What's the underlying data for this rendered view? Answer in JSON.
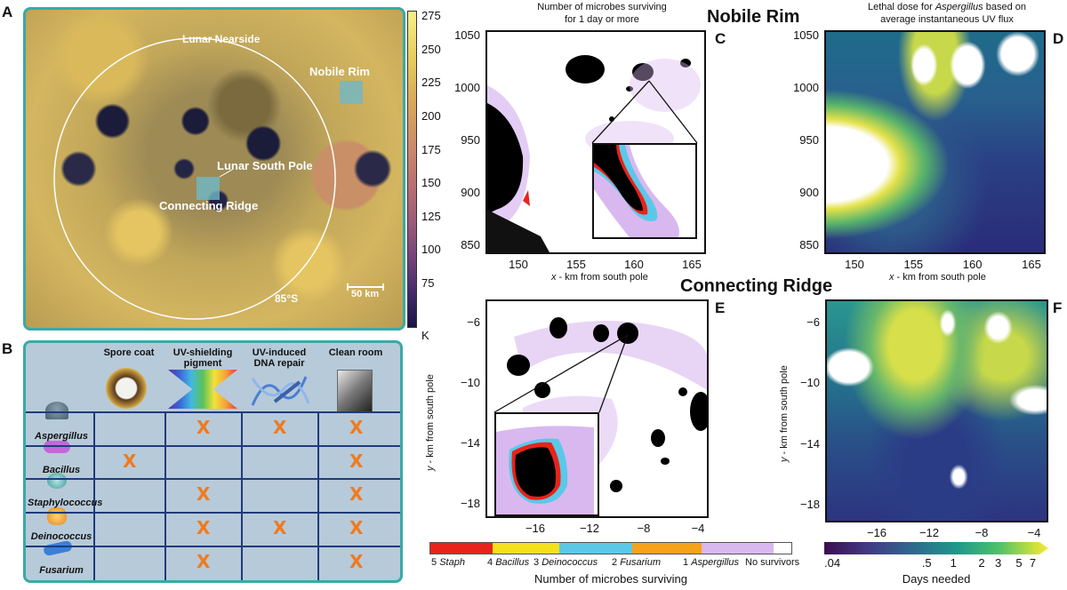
{
  "panel_labels": {
    "a": "A",
    "b": "B",
    "c": "C",
    "d": "D",
    "e": "E",
    "f": "F"
  },
  "map": {
    "labels": {
      "nearside": "Lunar Nearside",
      "nobile": "Nobile Rim",
      "southpole": "Lunar South Pole",
      "ridge": "Connecting Ridge",
      "lat": "85°S",
      "scalebar": "50 km"
    },
    "colorbar": {
      "ticks": [
        "275",
        "250",
        "225",
        "200",
        "175",
        "150",
        "125",
        "100",
        "75"
      ],
      "unit": "K"
    }
  },
  "table": {
    "columns": [
      "Spore coat",
      "UV-shielding pigment",
      "UV-induced DNA repair",
      "Clean room"
    ],
    "rows": [
      {
        "name": "Aspergillus",
        "marks": [
          "",
          "X",
          "X",
          "X"
        ]
      },
      {
        "name": "Bacillus",
        "marks": [
          "X",
          "",
          "",
          "X"
        ]
      },
      {
        "name": "Staphylococcus",
        "marks": [
          "",
          "X",
          "",
          "X"
        ]
      },
      {
        "name": "Deinococcus",
        "marks": [
          "",
          "X",
          "X",
          "X"
        ]
      },
      {
        "name": "Fusarium",
        "marks": [
          "",
          "X",
          "",
          "X"
        ]
      }
    ]
  },
  "section_titles": {
    "top": "Nobile Rim",
    "bottom": "Connecting Ridge"
  },
  "panel_c": {
    "title_line1": "Number of microbes surviving",
    "title_line2": "for 1 day or more",
    "x_ticks": [
      "150",
      "155",
      "160",
      "165"
    ],
    "y_ticks": [
      "1050",
      "1000",
      "950",
      "900",
      "850"
    ],
    "xlabel_prefix": "x",
    "xlabel_rest": " - km from south pole"
  },
  "panel_d": {
    "title_line1_pre": "Lethal dose for ",
    "title_line1_italic": "Aspergillus",
    "title_line1_post": " based on",
    "title_line2": "average instantaneous UV flux",
    "x_ticks": [
      "150",
      "155",
      "160",
      "165"
    ],
    "y_ticks": [
      "1050",
      "1000",
      "950",
      "900",
      "850"
    ],
    "xlabel_prefix": "x",
    "xlabel_rest": " - km from south pole"
  },
  "panel_e": {
    "x_ticks": [
      "−16",
      "−12",
      "−8",
      "−4"
    ],
    "y_ticks": [
      "−6",
      "−10",
      "−14",
      "−18"
    ],
    "ylabel_prefix": "y",
    "ylabel_rest": " - km from south pole"
  },
  "panel_f": {
    "x_ticks": [
      "−16",
      "−12",
      "−8",
      "−4"
    ],
    "y_ticks": [
      "−6",
      "−10",
      "−14",
      "−18"
    ],
    "ylabel_prefix": "y",
    "ylabel_rest": " - km from south pole"
  },
  "legend_e": {
    "items": [
      {
        "num": "5",
        "name": "Staph",
        "color": "#e8231b"
      },
      {
        "num": "4",
        "name": "Bacillus",
        "color": "#f4e01c"
      },
      {
        "num": "3",
        "name": "Deinococcus",
        "color": "#5bc8e8"
      },
      {
        "num": "2",
        "name": "Fusarium",
        "color": "#f6a21a"
      },
      {
        "num": "1",
        "name": "Aspergillus",
        "color": "#d9b8ef"
      },
      {
        "num": "",
        "name": "No survivors",
        "color": "#ffffff"
      }
    ],
    "caption": "Number of microbes surviving"
  },
  "legend_f": {
    "ticks": [
      ".04",
      ".5",
      "1",
      "2",
      "3",
      "5",
      "7"
    ],
    "caption": "Days needed"
  },
  "colors": {
    "frame_teal": "#3aa9a8",
    "table_bg": "#b7cad9",
    "grid": "#1f3b7a",
    "mark": "#f07a1e"
  }
}
